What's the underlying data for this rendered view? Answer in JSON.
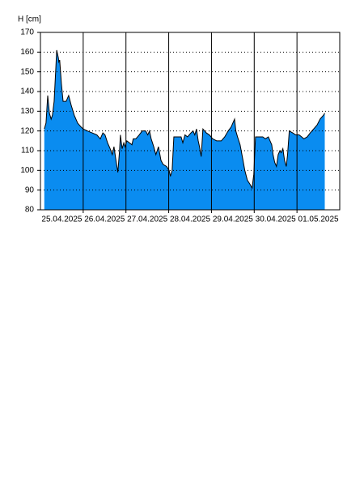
{
  "chart_data": {
    "type": "area",
    "y_label": "H [cm]",
    "x": [
      0.09,
      0.13,
      0.17,
      0.21,
      0.25,
      0.28,
      0.32,
      0.36,
      0.38,
      0.42,
      0.43,
      0.45,
      0.49,
      0.53,
      0.6,
      0.66,
      0.72,
      0.79,
      0.87,
      0.95,
      1.0,
      1.1,
      1.21,
      1.32,
      1.4,
      1.46,
      1.51,
      1.57,
      1.63,
      1.68,
      1.72,
      1.76,
      1.81,
      1.85,
      1.87,
      1.91,
      1.95,
      1.98,
      2.02,
      2.08,
      2.14,
      2.17,
      2.23,
      2.31,
      2.38,
      2.46,
      2.51,
      2.55,
      2.59,
      2.65,
      2.7,
      2.76,
      2.82,
      2.87,
      2.95,
      3.01,
      3.04,
      3.08,
      3.12,
      3.21,
      3.29,
      3.33,
      3.38,
      3.44,
      3.52,
      3.57,
      3.61,
      3.65,
      3.69,
      3.72,
      3.76,
      3.8,
      3.88,
      3.95,
      4.03,
      4.12,
      4.23,
      4.31,
      4.39,
      4.46,
      4.54,
      4.57,
      4.61,
      4.67,
      4.73,
      4.78,
      4.84,
      4.9,
      4.95,
      4.99,
      5.03,
      5.1,
      5.2,
      5.26,
      5.33,
      5.41,
      5.44,
      5.48,
      5.52,
      5.56,
      5.6,
      5.63,
      5.67,
      5.71,
      5.75,
      5.78,
      5.82,
      5.9,
      5.97,
      6.05,
      6.11,
      6.16,
      6.24,
      6.31,
      6.39,
      6.47,
      6.54,
      6.62,
      6.65
    ],
    "series": [
      {
        "color": "#0a8cf0",
        "line_color": "#000000",
        "values": [
          121,
          124,
          138,
          129,
          126,
          128,
          135,
          152,
          161,
          157,
          155,
          156,
          144,
          135,
          135,
          138,
          133,
          128,
          124,
          122,
          121,
          120,
          119,
          118,
          116,
          119,
          118,
          114,
          111,
          108,
          112,
          106,
          99,
          110,
          118,
          111,
          114,
          112,
          115,
          114,
          113,
          116,
          116,
          118,
          120,
          120,
          118,
          120,
          116,
          112,
          108,
          112,
          105,
          103,
          102,
          100,
          97,
          100,
          117,
          117,
          117,
          114,
          118,
          117,
          119,
          120,
          118,
          121,
          115,
          112,
          107,
          121,
          119,
          118,
          116,
          115,
          115,
          117,
          120,
          122,
          126,
          120,
          117,
          113,
          106,
          100,
          95,
          93,
          91,
          98,
          117,
          117,
          117,
          116,
          117,
          113,
          108,
          104,
          102,
          108,
          110,
          109,
          111,
          105,
          102,
          108,
          120,
          119,
          118,
          118,
          117,
          116,
          117,
          119,
          121,
          123,
          126,
          128,
          129
        ]
      }
    ],
    "xlim": [
      0,
      7
    ],
    "xticks": [
      {
        "value": 0.5,
        "label": "25.04.2025"
      },
      {
        "value": 1.5,
        "label": "26.04.2025"
      },
      {
        "value": 2.5,
        "label": "27.04.2025"
      },
      {
        "value": 3.5,
        "label": "28.04.2025"
      },
      {
        "value": 4.5,
        "label": "29.04.2025"
      },
      {
        "value": 5.5,
        "label": "30.04.2025"
      },
      {
        "value": 6.5,
        "label": "01.05.2025"
      }
    ],
    "xgrid": [
      1,
      2,
      3,
      4,
      5,
      6
    ],
    "ylim": [
      80,
      170
    ],
    "yticks": [
      80,
      90,
      100,
      110,
      120,
      130,
      140,
      150,
      160,
      170
    ],
    "grid": true
  }
}
